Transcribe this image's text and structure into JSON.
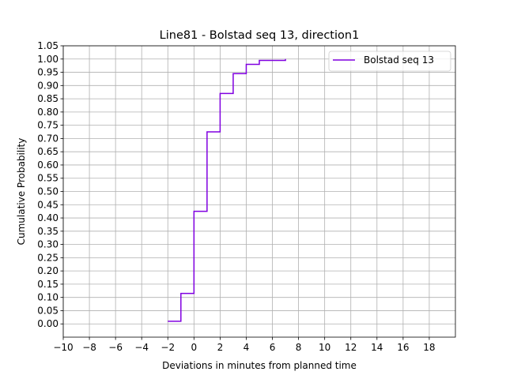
{
  "chart_data": {
    "type": "line",
    "drawstyle": "steps-post",
    "title": "Line81 - Bolstad seq 13, direction1",
    "xlabel": "Deviations in minutes from planned time",
    "ylabel": "Cumulative Probability",
    "xlim": [
      -10,
      20
    ],
    "ylim": [
      -0.05,
      1.05
    ],
    "xticks": [
      -10,
      -8,
      -6,
      -4,
      -2,
      0,
      2,
      4,
      6,
      8,
      10,
      12,
      14,
      16,
      18
    ],
    "xtick_labels": [
      "−10",
      "−8",
      "−6",
      "−4",
      "−2",
      "0",
      "2",
      "4",
      "6",
      "8",
      "10",
      "12",
      "14",
      "16",
      "18"
    ],
    "yticks": [
      0,
      0.05,
      0.1,
      0.15,
      0.2,
      0.25,
      0.3,
      0.35,
      0.4,
      0.45,
      0.5,
      0.55,
      0.6,
      0.65,
      0.7,
      0.75,
      0.8,
      0.85,
      0.9,
      0.95,
      1.0,
      1.05
    ],
    "ytick_labels": [
      "0.00",
      "0.05",
      "0.10",
      "0.15",
      "0.20",
      "0.25",
      "0.30",
      "0.35",
      "0.40",
      "0.45",
      "0.50",
      "0.55",
      "0.60",
      "0.65",
      "0.70",
      "0.75",
      "0.80",
      "0.85",
      "0.90",
      "0.95",
      "1.00",
      "1.05"
    ],
    "grid": true,
    "legend_position": "top-right",
    "series": [
      {
        "name": "Bolstad seq 13",
        "color": "#8000e0",
        "x": [
          -2,
          -1,
          0,
          1,
          2,
          3,
          4,
          5,
          6,
          7
        ],
        "y": [
          0.01,
          0.115,
          0.425,
          0.725,
          0.87,
          0.945,
          0.98,
          0.995,
          0.995,
          1.0
        ]
      }
    ]
  }
}
